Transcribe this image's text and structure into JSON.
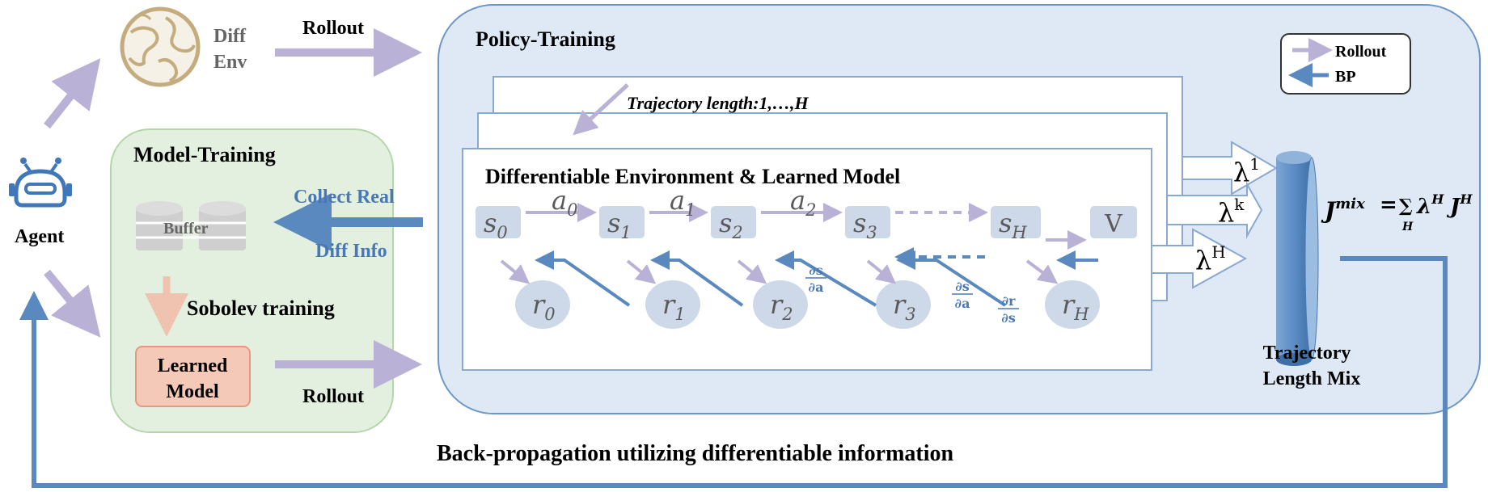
{
  "agent": {
    "label": "Agent",
    "icon": "robot-icon"
  },
  "diff_env": {
    "line1": "Diff",
    "line2": "Env",
    "icon": "globe-icon"
  },
  "rollout_top": "Rollout",
  "rollout_bottom": "Rollout",
  "model_training": {
    "title": "Model-Training",
    "buffer": "Buffer",
    "sobolev": "Sobolev training",
    "learned_model_line1": "Learned",
    "learned_model_line2": "Model",
    "collect_line1": "Collect Real",
    "collect_line2": "Diff Info"
  },
  "policy_training": {
    "title": "Policy-Training",
    "trajectory_length": "Trajectory length:1,…,H",
    "inner_title": "Differentiable Environment & Learned Model"
  },
  "legend": {
    "rollout": "Rollout",
    "bp": "BP"
  },
  "states": [
    "s",
    "s",
    "s",
    "s",
    "s"
  ],
  "state_subs": [
    "0",
    "1",
    "2",
    "3",
    "H"
  ],
  "actions": [
    "a",
    "a",
    "a"
  ],
  "action_subs": [
    "0",
    "1",
    "2"
  ],
  "rewards": [
    "r",
    "r",
    "r",
    "r",
    "r"
  ],
  "reward_subs": [
    "0",
    "1",
    "2",
    "3",
    "H"
  ],
  "value": "V",
  "derivs": [
    {
      "num": "∂s",
      "den": "∂a"
    },
    {
      "num": "∂s",
      "den": "∂a"
    },
    {
      "num": "∂r",
      "den": "∂s"
    }
  ],
  "lambdas": [
    {
      "base": "λ",
      "sup": "1"
    },
    {
      "base": "λ",
      "sup": "k"
    },
    {
      "base": "λ",
      "sup": "H"
    }
  ],
  "mix_formula": {
    "lhs": "J",
    "lhs_sup": "mix",
    "eq": "=",
    "sum": "∑",
    "sum_sub": "H",
    "term": "λ",
    "term_sup": "H",
    "term2": "J",
    "term2_sup": "H"
  },
  "traj_mix_line1": "Trajectory",
  "traj_mix_line2": "Length Mix",
  "backprop": "Back-propagation utilizing differentiable information",
  "colors": {
    "rollout_arrow": "#b9b1d6",
    "bp_arrow": "#5a89c0",
    "policy_bg": "#dfe9f6",
    "policy_border": "#6f97c5",
    "model_bg": "#e3f0e0",
    "model_border": "#b4d6aa",
    "node_fill": "#cdd9e8",
    "learned_fill": "#f5c9b7",
    "learned_border": "#e39a80",
    "cylinder": "#5f8fc5",
    "blue_text": "#4a78b4",
    "sobolev_arrow": "#f0c3b0"
  }
}
